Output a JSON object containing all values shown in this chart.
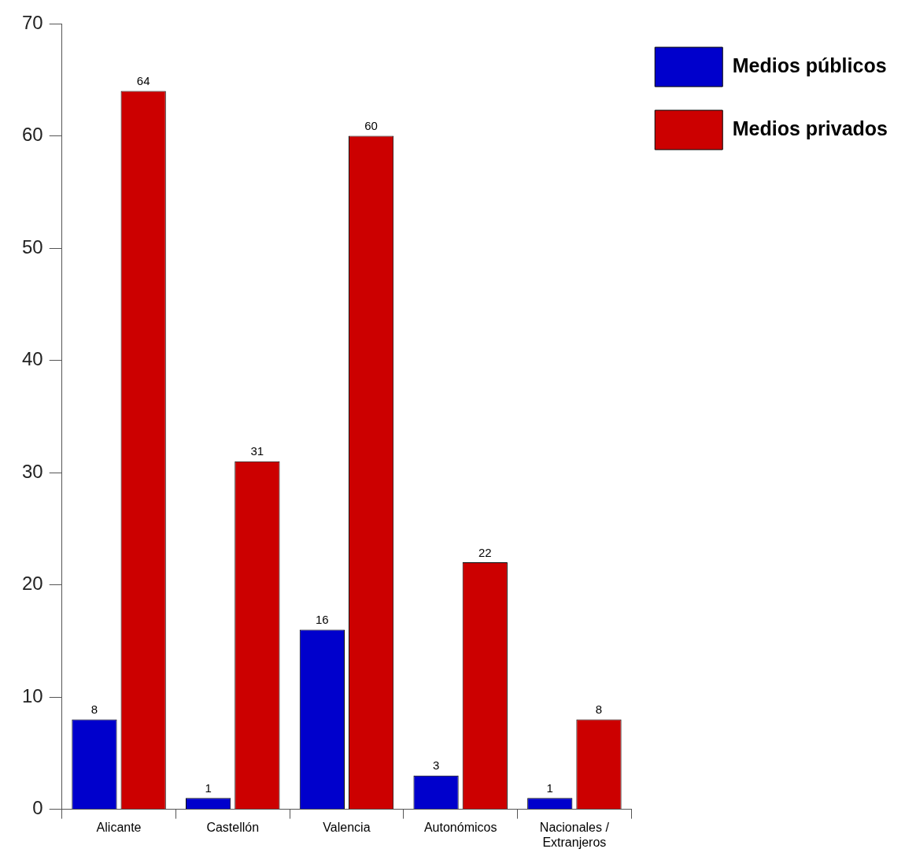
{
  "chart_data": {
    "type": "bar",
    "categories": [
      "Alicante",
      "Castellón",
      "Valencia",
      "Autonómicos",
      "Nacionales / Extranjeros"
    ],
    "series": [
      {
        "name": "Medios públicos",
        "color": "#0000cc",
        "values": [
          8,
          1,
          16,
          3,
          1
        ]
      },
      {
        "name": "Medios privados",
        "color": "#cc0000",
        "values": [
          64,
          31,
          60,
          22,
          8
        ]
      }
    ],
    "ylim": [
      0,
      70
    ],
    "yticks": [
      0,
      10,
      20,
      30,
      40,
      50,
      60,
      70
    ],
    "grid": false,
    "legend": "top right",
    "data_labels": true
  }
}
